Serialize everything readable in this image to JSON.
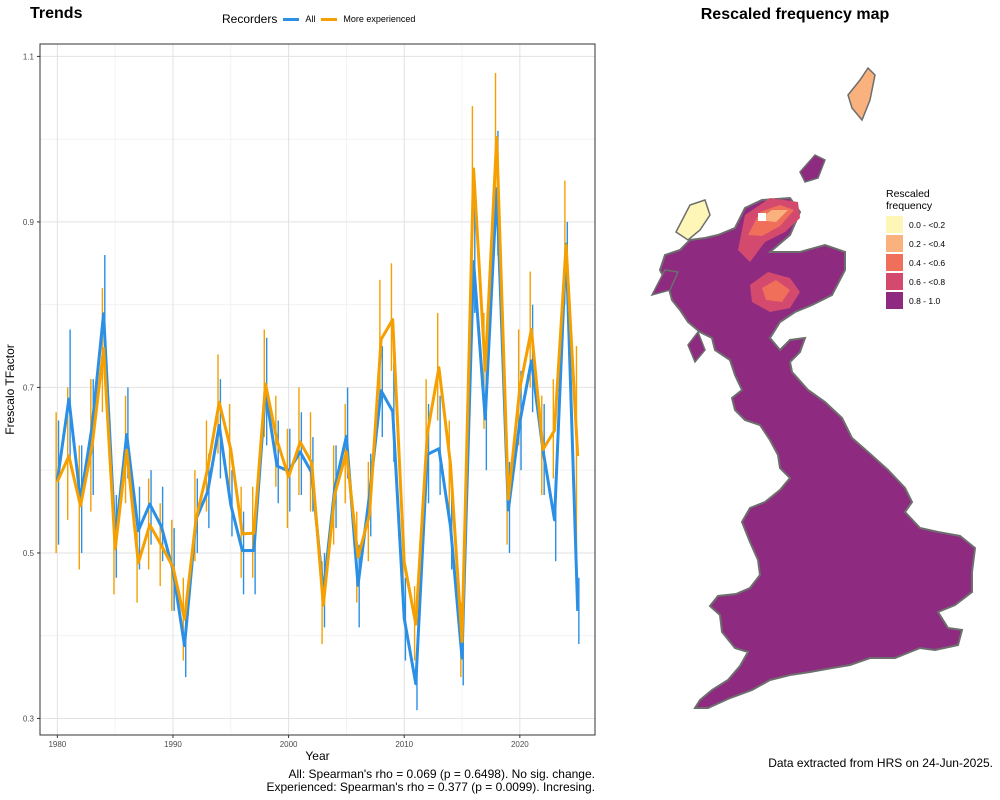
{
  "titles": {
    "left": "Trends",
    "right": "Rescaled frequency map"
  },
  "legend": {
    "title": "Recorders",
    "items": [
      {
        "label": "All",
        "color": "#2b8fe5"
      },
      {
        "label": "More experienced",
        "color": "#f5a000"
      }
    ]
  },
  "stats": {
    "line1": "All: Spearman's rho = 0.069 (p = 0.6498). No sig. change.",
    "line2": "Experienced: Spearman's rho = 0.377 (p = 0.0099). Incresing."
  },
  "map_legend": {
    "title_line1": "Rescaled",
    "title_line2": "frequency",
    "items": [
      {
        "label": "0.0 - <0.2",
        "color": "#fdf6b6"
      },
      {
        "label": "0.2 - <0.4",
        "color": "#f9b27e"
      },
      {
        "label": "0.4 - <0.6",
        "color": "#ef6f5a"
      },
      {
        "label": "0.6 - <0.8",
        "color": "#d34a6e"
      },
      {
        "label": "0.8 - 1.0",
        "color": "#8e2a80"
      }
    ]
  },
  "note": "Data extracted from HRS on 24-Jun-2025.",
  "chart_data": {
    "type": "line",
    "xlabel": "Year",
    "ylabel": "Frescalo TFactor",
    "xlim": [
      1978.5,
      2026.5
    ],
    "ylim": [
      0.28,
      1.115
    ],
    "xticks": [
      1980,
      1990,
      2000,
      2010,
      2020
    ],
    "yticks": [
      0.3,
      0.5,
      0.7,
      0.9,
      1.1
    ],
    "grid": true,
    "x": [
      1980,
      1981,
      1982,
      1983,
      1984,
      1985,
      1986,
      1987,
      1988,
      1989,
      1990,
      1991,
      1992,
      1993,
      1994,
      1995,
      1996,
      1997,
      1998,
      1999,
      2000,
      2001,
      2002,
      2003,
      2004,
      2005,
      2006,
      2007,
      2008,
      2009,
      2010,
      2011,
      2012,
      2013,
      2014,
      2015,
      2016,
      2017,
      2018,
      2019,
      2020,
      2021,
      2022,
      2023,
      2024,
      2025
    ],
    "series": [
      {
        "name": "All",
        "color": "#2b8fe5",
        "values": [
          0.587,
          0.686,
          0.564,
          0.652,
          0.789,
          0.515,
          0.643,
          0.527,
          0.559,
          0.532,
          0.479,
          0.388,
          0.541,
          0.574,
          0.654,
          0.558,
          0.503,
          0.503,
          0.695,
          0.605,
          0.599,
          0.622,
          0.597,
          0.452,
          0.579,
          0.641,
          0.461,
          0.57,
          0.696,
          0.671,
          0.421,
          0.342,
          0.619,
          0.626,
          0.532,
          0.373,
          0.852,
          0.662,
          0.94,
          0.552,
          0.658,
          0.732,
          0.624,
          0.54,
          0.873,
          0.43
        ],
        "err_low": [
          0.51,
          0.61,
          0.5,
          0.57,
          0.72,
          0.47,
          0.59,
          0.48,
          0.51,
          0.49,
          0.43,
          0.35,
          0.5,
          0.53,
          0.59,
          0.52,
          0.45,
          0.45,
          0.63,
          0.56,
          0.55,
          0.57,
          0.55,
          0.41,
          0.53,
          0.59,
          0.41,
          0.52,
          0.64,
          0.61,
          0.37,
          0.31,
          0.56,
          0.57,
          0.48,
          0.34,
          0.79,
          0.6,
          0.86,
          0.5,
          0.6,
          0.67,
          0.57,
          0.49,
          0.81,
          0.39
        ],
        "err_high": [
          0.66,
          0.77,
          0.63,
          0.71,
          0.86,
          0.57,
          0.7,
          0.58,
          0.6,
          0.58,
          0.53,
          0.42,
          0.59,
          0.62,
          0.71,
          0.6,
          0.55,
          0.55,
          0.76,
          0.66,
          0.65,
          0.67,
          0.64,
          0.5,
          0.63,
          0.7,
          0.51,
          0.62,
          0.75,
          0.73,
          0.47,
          0.38,
          0.68,
          0.69,
          0.58,
          0.41,
          0.92,
          0.73,
          1.01,
          0.61,
          0.72,
          0.8,
          0.68,
          0.59,
          0.9,
          0.47
        ]
      },
      {
        "name": "More experienced",
        "color": "#f5a000",
        "values": [
          0.586,
          0.617,
          0.557,
          0.628,
          0.747,
          0.505,
          0.624,
          0.488,
          0.534,
          0.509,
          0.483,
          0.42,
          0.541,
          0.602,
          0.682,
          0.625,
          0.523,
          0.524,
          0.704,
          0.636,
          0.592,
          0.634,
          0.609,
          0.437,
          0.571,
          0.622,
          0.495,
          0.546,
          0.758,
          0.782,
          0.489,
          0.414,
          0.644,
          0.724,
          0.607,
          0.393,
          0.964,
          0.721,
          1.002,
          0.565,
          0.699,
          0.77,
          0.625,
          0.648,
          0.872,
          0.617
        ],
        "err_low": [
          0.5,
          0.54,
          0.48,
          0.55,
          0.67,
          0.45,
          0.56,
          0.44,
          0.48,
          0.46,
          0.43,
          0.37,
          0.49,
          0.55,
          0.62,
          0.57,
          0.47,
          0.47,
          0.64,
          0.58,
          0.53,
          0.57,
          0.55,
          0.39,
          0.51,
          0.56,
          0.44,
          0.49,
          0.69,
          0.72,
          0.44,
          0.37,
          0.58,
          0.66,
          0.55,
          0.35,
          0.89,
          0.65,
          0.93,
          0.51,
          0.63,
          0.7,
          0.57,
          0.59,
          0.8,
          0.48
        ],
        "err_high": [
          0.67,
          0.7,
          0.63,
          0.71,
          0.82,
          0.56,
          0.69,
          0.54,
          0.59,
          0.56,
          0.54,
          0.47,
          0.6,
          0.66,
          0.74,
          0.68,
          0.58,
          0.58,
          0.77,
          0.69,
          0.65,
          0.7,
          0.67,
          0.49,
          0.63,
          0.68,
          0.55,
          0.61,
          0.83,
          0.85,
          0.54,
          0.46,
          0.71,
          0.79,
          0.66,
          0.44,
          1.04,
          0.79,
          1.08,
          0.62,
          0.77,
          0.84,
          0.69,
          0.71,
          0.95,
          0.75
        ]
      }
    ]
  }
}
